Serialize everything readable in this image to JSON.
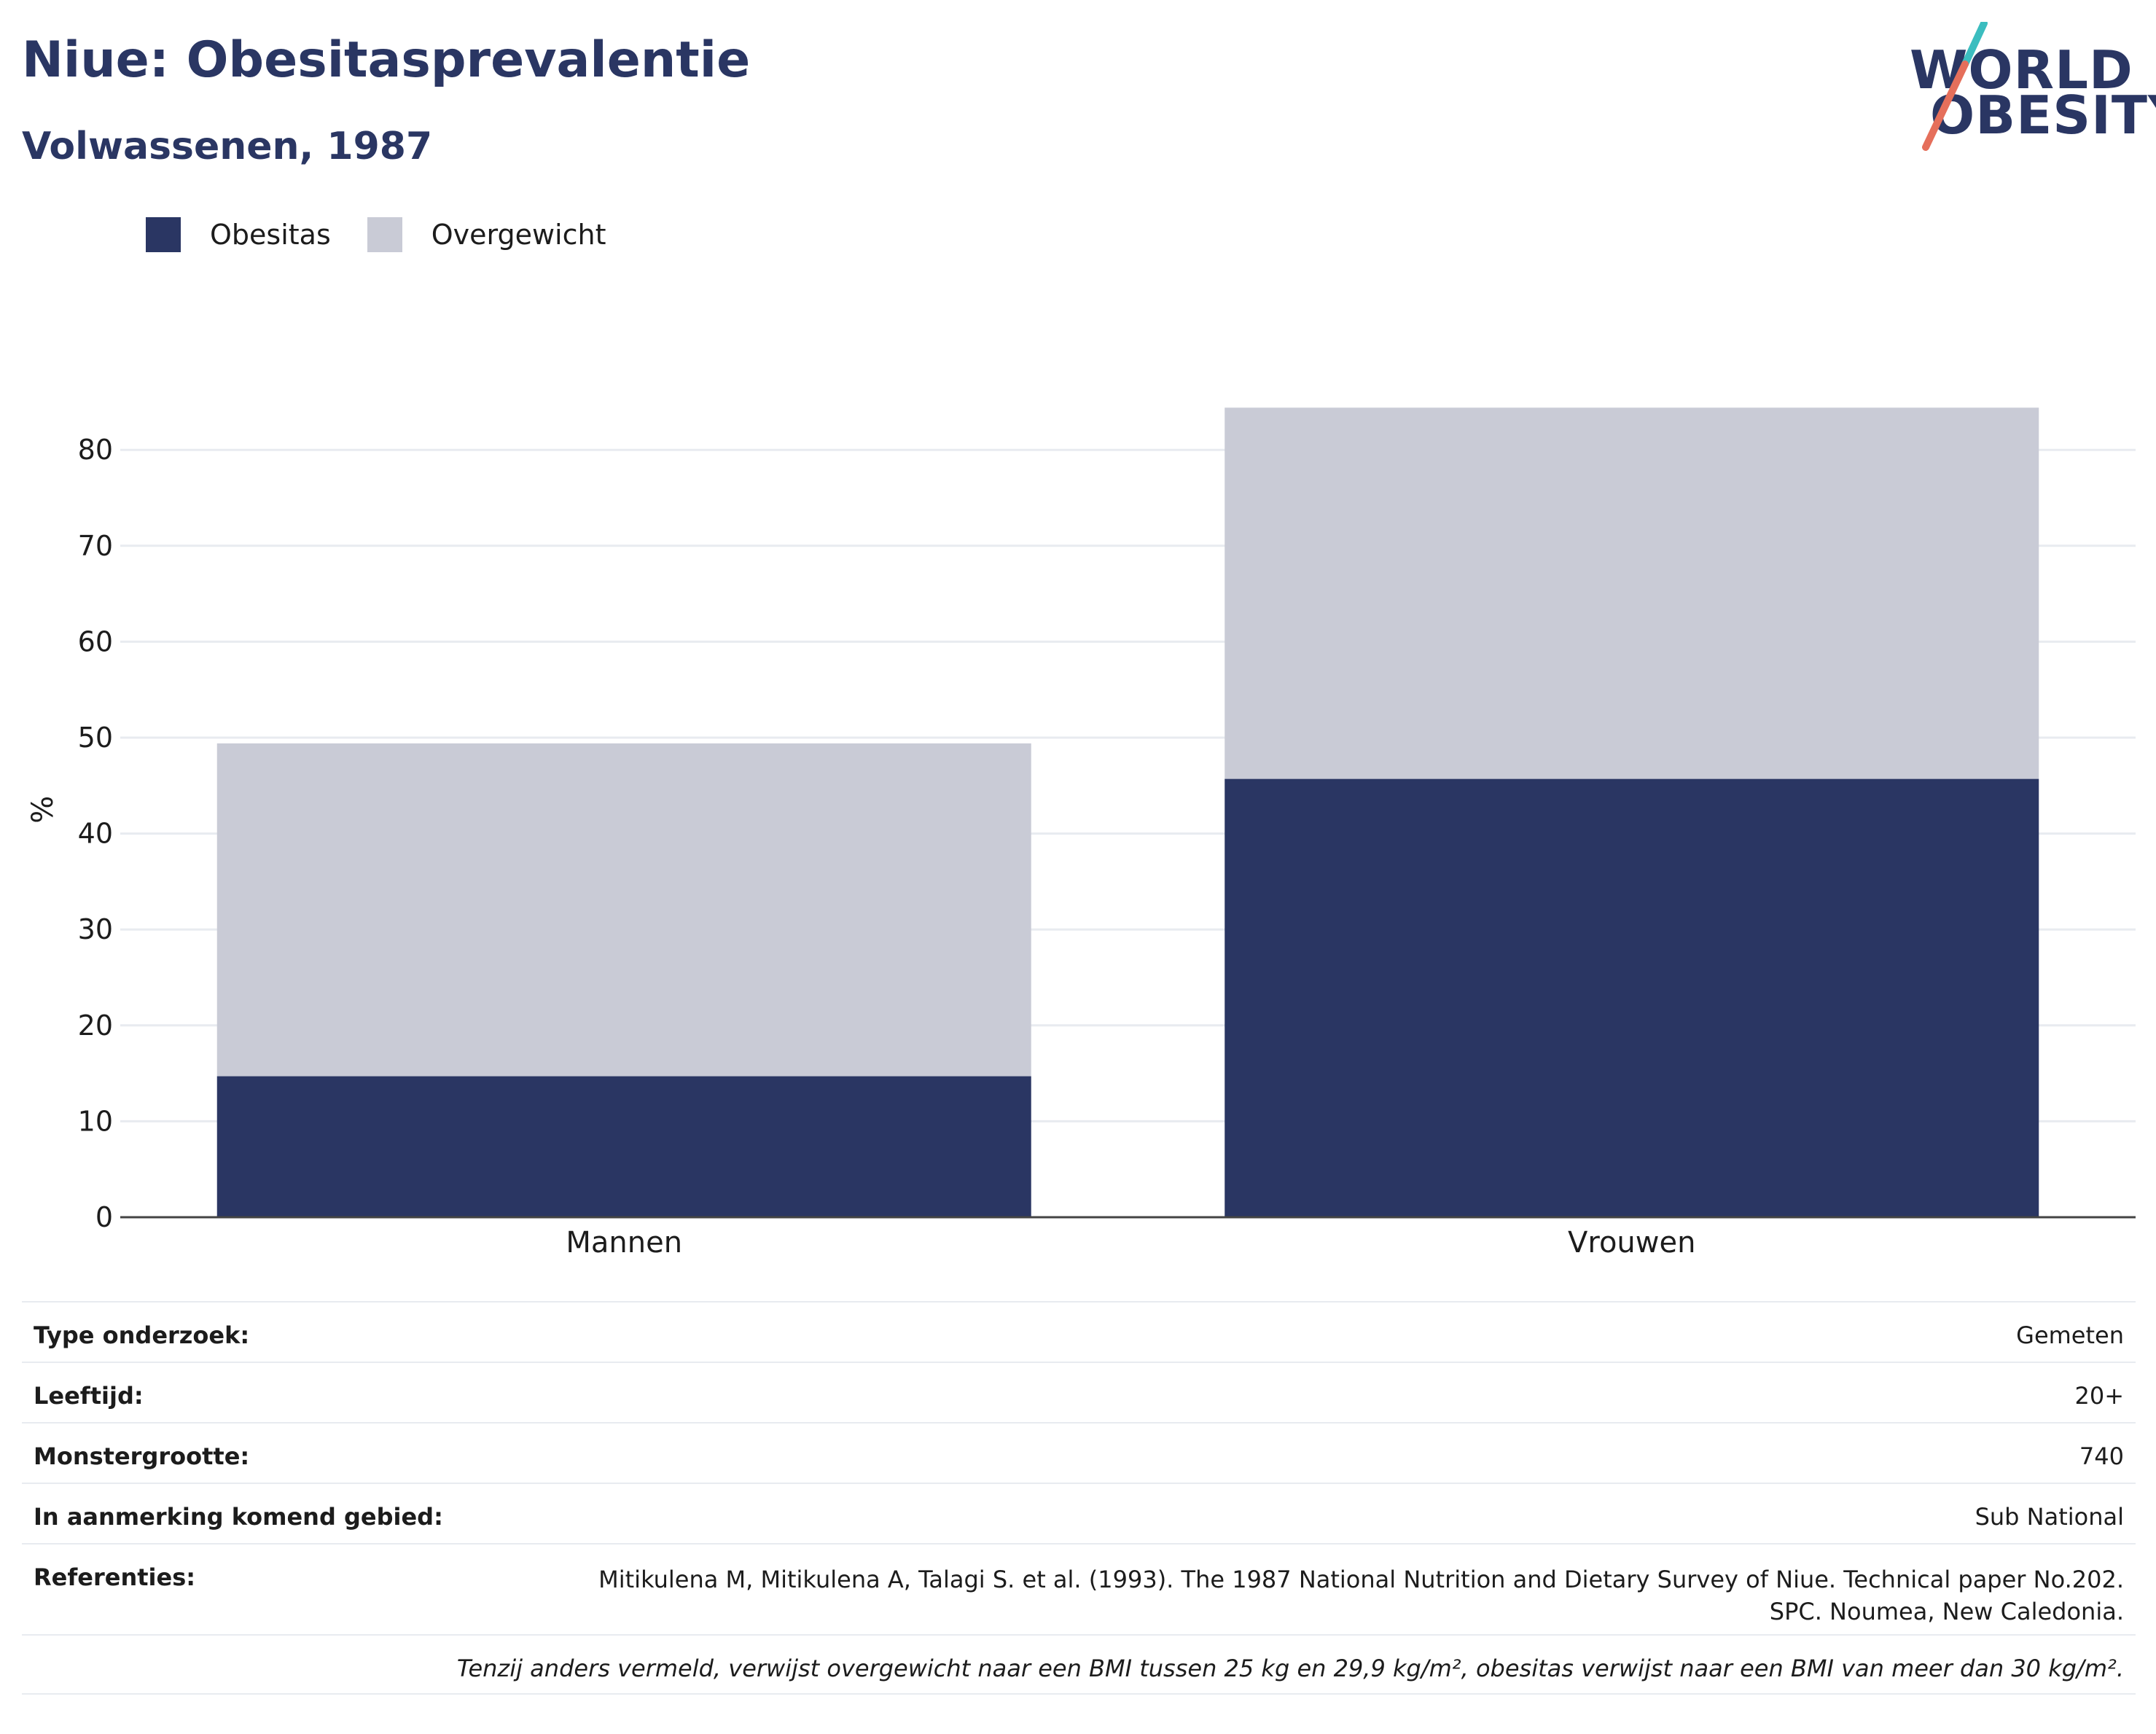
{
  "header": {
    "title": "Niue: Obesitasprevalentie",
    "subtitle": "Volwassenen, 1987"
  },
  "logo": {
    "line1": "WORLD",
    "line2": "OBESITY",
    "colors": {
      "text": "#2a3663",
      "teal": "#3bbdbf",
      "coral": "#e56f5b"
    }
  },
  "legend": [
    {
      "label": "Obesitas",
      "color": "#2a3663"
    },
    {
      "label": "Overgewicht",
      "color": "#c9cbd6"
    }
  ],
  "chart_data": {
    "type": "bar",
    "stacked": true,
    "categories": [
      "Mannen",
      "Vrouwen"
    ],
    "series": [
      {
        "name": "Obesitas",
        "values": [
          14.7,
          45.7
        ],
        "color": "#2a3663"
      },
      {
        "name": "Overgewicht",
        "values": [
          34.7,
          38.7
        ],
        "color": "#c9cbd6"
      }
    ],
    "ylabel": "%",
    "ylim": [
      0,
      85
    ],
    "yticks": [
      0,
      10,
      20,
      30,
      40,
      50,
      60,
      70,
      80
    ],
    "grid": true,
    "legend_position": "top-left"
  },
  "info": {
    "rows": [
      {
        "label": "Type onderzoek:",
        "value": "Gemeten"
      },
      {
        "label": "Leeftijd:",
        "value": "20+"
      },
      {
        "label": "Monstergrootte:",
        "value": "740"
      },
      {
        "label": "In aanmerking komend gebied:",
        "value": "Sub National"
      }
    ],
    "references": {
      "label": "Referenties:",
      "line1": "Mitikulena M, Mitikulena A, Talagi S. et al. (1993). The 1987 National Nutrition and Dietary Survey of Niue. Technical paper No.202.",
      "line2": "SPC. Noumea, New Caledonia."
    },
    "note": "Tenzij anders vermeld, verwijst overgewicht naar een BMI tussen 25 kg en 29,9 kg/m², obesitas verwijst naar een BMI van meer dan 30 kg/m²."
  }
}
